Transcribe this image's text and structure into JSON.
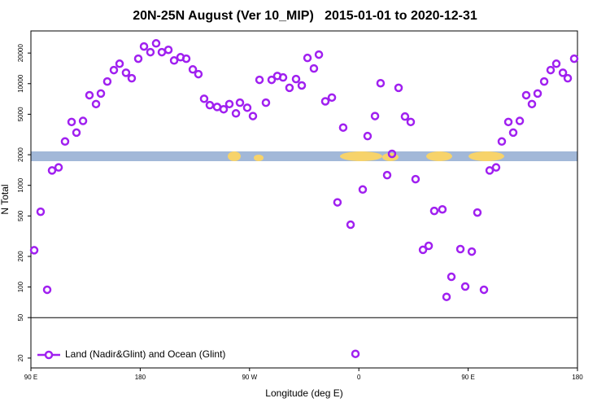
{
  "chart_data": {
    "type": "scatter",
    "title": "20N-25N August (Ver 10_MIP)   2015-01-01 to 2020-12-31",
    "xlabel": "Longitude (deg E)",
    "ylabel": "N Total",
    "xlim": [
      90,
      540
    ],
    "ylim": [
      16,
      33000
    ],
    "ylog": true,
    "xticks": [
      {
        "value": 90,
        "label": "90 E"
      },
      180,
      {
        "value": 270,
        "label": "90 W"
      },
      {
        "value": 360,
        "label": "0"
      },
      {
        "value": 450,
        "label": "90 E"
      },
      180
    ],
    "yticks": [
      20,
      50,
      100,
      200,
      500,
      1000,
      2000,
      5000,
      10000,
      20000
    ],
    "hline": 50,
    "legend": "bottomleft",
    "series": [
      {
        "name": "Land (Nadir&Glint) and Ocean (Glint)",
        "color": "#a020f0",
        "x": [
          92.7,
          98,
          103.4,
          107.4,
          112.8,
          118.1,
          123.5,
          127.5,
          132.9,
          138.2,
          143.6,
          147.6,
          152.9,
          158.3,
          163,
          168.3,
          173,
          178.4,
          183.1,
          188.4,
          193.1,
          197.8,
          203.2,
          207.9,
          213.2,
          217.9,
          223.3,
          227.9,
          232.6,
          237.3,
          243.3,
          248.7,
          253.4,
          258.8,
          262.1,
          268.1,
          272.8,
          278.2,
          283.5,
          288.2,
          292.9,
          297.6,
          302.9,
          308.3,
          313,
          317.7,
          323,
          327.1,
          332.4,
          337.8,
          342.4,
          347.1,
          353.2,
          357.2,
          363.2,
          367.2,
          373.3,
          377.9,
          383.3,
          387.3,
          392.7,
          398,
          402.7,
          406.7,
          412.8,
          417.5,
          422.1,
          428.8,
          432.2,
          436.2,
          443.6,
          447.6,
          453,
          457.6,
          463,
          467.7,
          473,
          477.7,
          483.1,
          487.1,
          492.5,
          497.8,
          502.5,
          507.2,
          512.6,
          517.9,
          522.6,
          528,
          532,
          537.3
        ],
        "values": [
          230,
          550,
          94,
          1400,
          1500,
          2700,
          4200,
          3300,
          4300,
          7700,
          6300,
          8000,
          10500,
          13600,
          15700,
          12800,
          11300,
          17600,
          23200,
          20400,
          24900,
          20400,
          21500,
          16900,
          18200,
          17600,
          13800,
          12400,
          7100,
          6150,
          5900,
          5600,
          6300,
          5100,
          6500,
          5800,
          4800,
          10900,
          6500,
          10900,
          11900,
          11500,
          9100,
          11100,
          9600,
          17900,
          14100,
          19300,
          6700,
          7300,
          680,
          3700,
          410,
          22,
          910,
          3050,
          4800,
          10100,
          1260,
          2040,
          9100,
          4750,
          4200,
          1150,
          232,
          254,
          560,
          580,
          80,
          126,
          236,
          101,
          223,
          540,
          94,
          1400,
          1500,
          2700,
          4200,
          3300,
          4300,
          7700,
          6300,
          8000,
          10500,
          13600,
          15700,
          12800,
          11300,
          17600
        ]
      }
    ]
  }
}
